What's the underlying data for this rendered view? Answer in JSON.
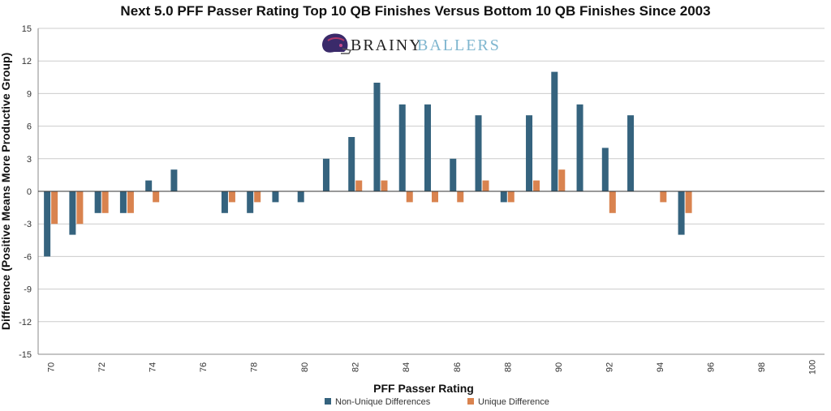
{
  "logo": {
    "brand_part1": "BRAINY",
    "brand_part2": "BALLERS",
    "icon": "football-helmet-icon"
  },
  "colors": {
    "non_unique": "#35637e",
    "unique": "#d9834f",
    "grid": "#cccccc",
    "zero_line": "#333333"
  },
  "chart_data": {
    "type": "bar",
    "title": "Next 5.0 PFF Passer Rating Top 10 QB Finishes Versus Bottom 10 QB Finishes Since 2003",
    "xlabel": "PFF Passer Rating",
    "ylabel": "Difference (Positive Means More Productive Group)",
    "ylim": [
      -15,
      15
    ],
    "y_ticks": [
      "15",
      "12",
      "9",
      "6",
      "3",
      "0",
      "-3",
      "-6",
      "-9",
      "-12",
      "-15"
    ],
    "x_ticks": [
      "70",
      "72",
      "74",
      "76",
      "78",
      "80",
      "82",
      "84",
      "86",
      "88",
      "90",
      "92",
      "94",
      "96",
      "98",
      "100"
    ],
    "categories": [
      70,
      71,
      72,
      73,
      74,
      75,
      76,
      77,
      78,
      79,
      80,
      81,
      82,
      83,
      84,
      85,
      86,
      87,
      88,
      89,
      90,
      91,
      92,
      93,
      94,
      95,
      96,
      97,
      98,
      99,
      100
    ],
    "series": [
      {
        "name": "Non-Unique Differences",
        "values": [
          -6,
          -4,
          -2,
          -2,
          1,
          2,
          0,
          -2,
          -2,
          -1,
          -1,
          3,
          5,
          10,
          8,
          8,
          3,
          7,
          -1,
          7,
          11,
          8,
          4,
          7,
          0,
          -4,
          0,
          0,
          0,
          0,
          0
        ]
      },
      {
        "name": "Unique Difference",
        "values": [
          -3,
          -3,
          -2,
          -2,
          -1,
          0,
          0,
          -1,
          -1,
          0,
          0,
          0,
          1,
          1,
          -1,
          -1,
          -1,
          1,
          -1,
          1,
          2,
          0,
          -2,
          0,
          -1,
          -2,
          0,
          0,
          0,
          0,
          0
        ]
      }
    ],
    "legend_position": "bottom-center",
    "grid": "horizontal"
  }
}
